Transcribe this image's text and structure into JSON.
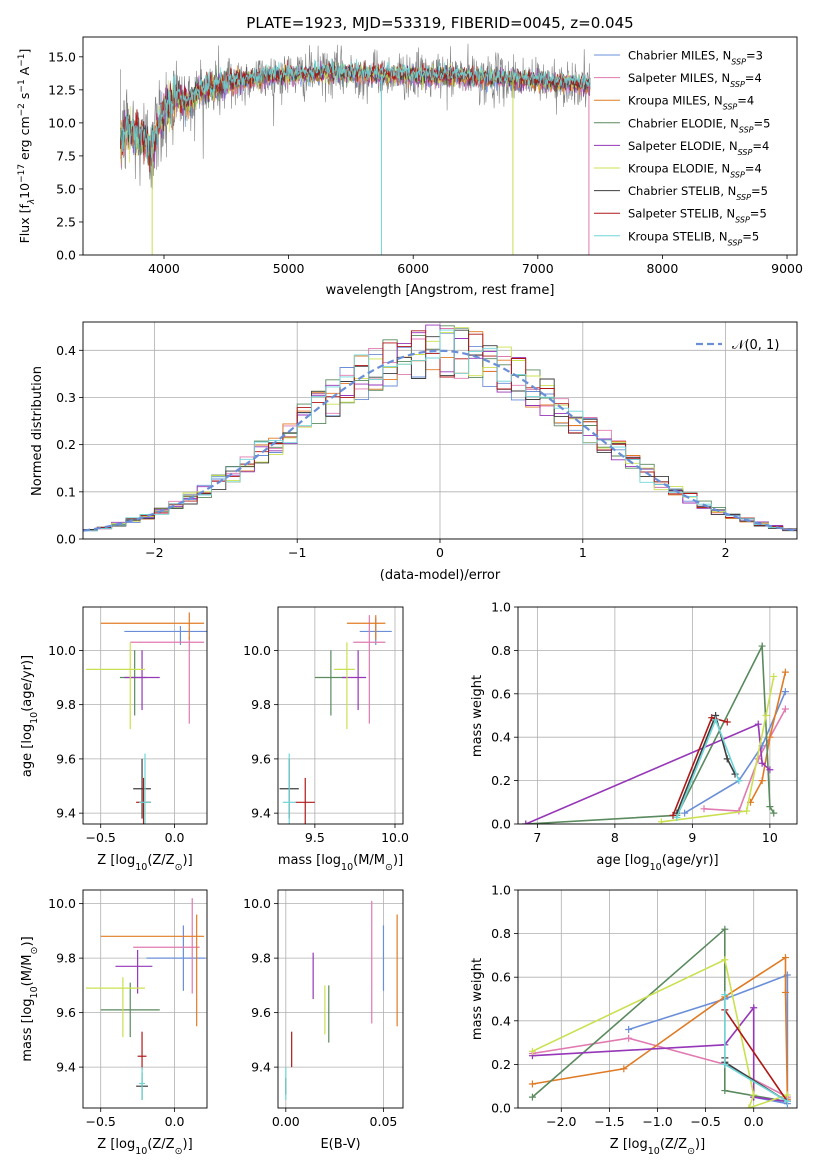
{
  "chart_data": [
    {
      "id": "spectrum",
      "type": "line",
      "title": "PLATE=1923, MJD=53319, FIBERID=0045, z=0.045",
      "xlabel": "wavelength [Angstrom, rest frame]",
      "ylabel": "Flux [f$_\\lambda$10$^{-17}$ erg cm$^{-2}$ s$^{-1}$ A$^{-1}$]",
      "ylabel_main": "Flux [f",
      "ylabel_sub": "λ",
      "ylabel_mid": "10",
      "ylabel_sup1": "−17",
      "ylabel_mid2": " erg cm",
      "ylabel_sup2": "−2",
      "ylabel_mid3": " s",
      "ylabel_sup3": "−1",
      "ylabel_mid4": " A",
      "ylabel_sup4": "−1",
      "ylabel_end": "]",
      "xlim": [
        3350,
        9080
      ],
      "ylim": [
        0,
        16.5
      ],
      "xticks": [
        4000,
        5000,
        6000,
        7000,
        8000,
        9000
      ],
      "yticks": [
        0.0,
        2.5,
        5.0,
        7.5,
        10.0,
        12.5,
        15.0
      ],
      "legend_position": "right",
      "data_profile": {
        "x": [
          3650,
          3700,
          3800,
          3900,
          4000,
          4100,
          4200,
          4300,
          4500,
          4800,
          5000,
          5300,
          5600,
          6000,
          6400,
          6800,
          7000,
          7300,
          7420
        ],
        "y": [
          8.5,
          9.5,
          9.0,
          8.0,
          11.0,
          12.0,
          11.5,
          12.5,
          13.0,
          13.5,
          13.6,
          13.8,
          13.7,
          13.6,
          13.5,
          13.3,
          13.2,
          13.0,
          12.8
        ]
      },
      "data_x_range": [
        3650,
        7420
      ],
      "series": [
        {
          "name": "Chabrier MILES",
          "nssp": "3",
          "color": "#6a8fd8"
        },
        {
          "name": "Salpeter MILES",
          "nssp": "4",
          "color": "#e07ab0"
        },
        {
          "name": "Kroupa MILES",
          "nssp": "4",
          "color": "#e07b25"
        },
        {
          "name": "Chabrier ELODIE",
          "nssp": "5",
          "color": "#5a8a5e"
        },
        {
          "name": "Salpeter ELODIE",
          "nssp": "4",
          "color": "#9636b8"
        },
        {
          "name": "Kroupa ELODIE",
          "nssp": "4",
          "color": "#cbe050"
        },
        {
          "name": "Chabrier STELIB",
          "nssp": "5",
          "color": "#3e3e3e"
        },
        {
          "name": "Salpeter STELIB",
          "nssp": "5",
          "color": "#b01818"
        },
        {
          "name": "Kroupa STELIB",
          "nssp": "5",
          "color": "#6ed6d8"
        }
      ],
      "observed_color": "#808080",
      "absorption_drops": [
        {
          "x": 3905,
          "color": "#cbe050"
        },
        {
          "x": 5745,
          "color": "#6ed6d8"
        },
        {
          "x": 6800,
          "color": "#cbe050"
        },
        {
          "x": 7410,
          "color": "#e07ab0"
        }
      ]
    },
    {
      "id": "residual_hist",
      "type": "histogram",
      "xlabel": "(data-model)/error",
      "ylabel": "Normed distribution",
      "xlim": [
        -2.5,
        2.5
      ],
      "ylim": [
        0,
        0.46
      ],
      "xticks": [
        -2,
        -1,
        0,
        1,
        2
      ],
      "yticks": [
        0.0,
        0.1,
        0.2,
        0.3,
        0.4
      ],
      "grid": true,
      "legend": "𝒩(0, 1)",
      "legend_position": "top-right",
      "normal_curve_color": "#6a8fd8",
      "bin_width": 0.1,
      "bin_start": -2.5,
      "series_colors": [
        "#6a8fd8",
        "#e07ab0",
        "#e07b25",
        "#5a8a5e",
        "#9636b8",
        "#cbe050",
        "#3e3e3e",
        "#b01818",
        "#6ed6d8"
      ]
    },
    {
      "id": "age_vs_Z",
      "type": "errorbar",
      "xlabel": "Z [log$_{10}$(Z/Z$_\\odot$)]",
      "ylabel": "age  [log$_{10}$(age/yr)]",
      "xlim": [
        -0.62,
        0.22
      ],
      "ylim": [
        9.36,
        10.16
      ],
      "xticks": [
        -0.5,
        0.0
      ],
      "yticks": [
        9.4,
        9.6,
        9.8,
        10.0
      ],
      "grid": true,
      "points": [
        {
          "x": 0.04,
          "y": 10.07,
          "xerr": [
            0.38,
            0.2
          ],
          "yerr": [
            0.05,
            0.02
          ],
          "color": "#6a8fd8"
        },
        {
          "x": 0.1,
          "y": 10.03,
          "xerr": [
            0.4,
            0.1
          ],
          "yerr": [
            0.3,
            0.02
          ],
          "color": "#e07ab0"
        },
        {
          "x": 0.1,
          "y": 10.1,
          "xerr": [
            0.6,
            0.1
          ],
          "yerr": [
            0.06,
            0.04
          ],
          "color": "#e07b25"
        },
        {
          "x": -0.27,
          "y": 9.9,
          "xerr": [
            0.1,
            0.08
          ],
          "yerr": [
            0.14,
            0.1
          ],
          "color": "#5a8a5e"
        },
        {
          "x": -0.22,
          "y": 9.9,
          "xerr": [
            0.12,
            0.12
          ],
          "yerr": [
            0.12,
            0.1
          ],
          "color": "#9636b8"
        },
        {
          "x": -0.3,
          "y": 9.93,
          "xerr": [
            0.3,
            0.1
          ],
          "yerr": [
            0.22,
            0.1
          ],
          "color": "#cbe050"
        },
        {
          "x": -0.22,
          "y": 9.49,
          "xerr": [
            0.06,
            0.06
          ],
          "yerr": [
            0.11,
            0.11
          ],
          "color": "#3e3e3e"
        },
        {
          "x": -0.21,
          "y": 9.44,
          "xerr": [
            0.05,
            0.05
          ],
          "yerr": [
            0.09,
            0.09
          ],
          "color": "#b01818"
        },
        {
          "x": -0.2,
          "y": 9.44,
          "xerr": [
            0.04,
            0.04
          ],
          "yerr": [
            0.18,
            0.18
          ],
          "color": "#6ed6d8"
        }
      ]
    },
    {
      "id": "age_vs_mass",
      "type": "errorbar",
      "xlabel": "mass [log$_{10}$(M/M$_\\odot$)]",
      "ylabel": "",
      "xlim": [
        9.27,
        10.05
      ],
      "ylim": [
        9.36,
        10.16
      ],
      "xticks": [
        9.5,
        10.0
      ],
      "yticks": [
        9.4,
        9.6,
        9.8,
        10.0
      ],
      "grid": true,
      "points": [
        {
          "x": 9.88,
          "y": 10.07,
          "xerr": [
            0.1,
            0.1
          ],
          "yerr": [
            0.05,
            0.05
          ],
          "color": "#6a8fd8"
        },
        {
          "x": 9.84,
          "y": 10.03,
          "xerr": [
            0.1,
            0.1
          ],
          "yerr": [
            0.3,
            0.1
          ],
          "color": "#e07ab0"
        },
        {
          "x": 9.88,
          "y": 10.1,
          "xerr": [
            0.18,
            0.06
          ],
          "yerr": [
            0.06,
            0.03
          ],
          "color": "#e07b25"
        },
        {
          "x": 9.6,
          "y": 9.9,
          "xerr": [
            0.1,
            0.1
          ],
          "yerr": [
            0.14,
            0.1
          ],
          "color": "#5a8a5e"
        },
        {
          "x": 9.77,
          "y": 9.9,
          "xerr": [
            0.1,
            0.05
          ],
          "yerr": [
            0.12,
            0.1
          ],
          "color": "#9636b8"
        },
        {
          "x": 9.7,
          "y": 9.93,
          "xerr": [
            0.08,
            0.05
          ],
          "yerr": [
            0.22,
            0.1
          ],
          "color": "#cbe050"
        },
        {
          "x": 9.34,
          "y": 9.49,
          "xerr": [
            0.06,
            0.06
          ],
          "yerr": [
            0.11,
            0.11
          ],
          "color": "#3e3e3e"
        },
        {
          "x": 9.44,
          "y": 9.44,
          "xerr": [
            0.06,
            0.06
          ],
          "yerr": [
            0.09,
            0.09
          ],
          "color": "#b01818"
        },
        {
          "x": 9.34,
          "y": 9.44,
          "xerr": [
            0.04,
            0.04
          ],
          "yerr": [
            0.18,
            0.18
          ],
          "color": "#6ed6d8"
        }
      ]
    },
    {
      "id": "weight_vs_age",
      "type": "line",
      "xlabel": "age  [log$_{10}$(age/yr)]",
      "ylabel": "mass weight",
      "xlim": [
        6.75,
        10.35
      ],
      "ylim": [
        0,
        1.0
      ],
      "xticks": [
        7,
        8,
        9,
        10
      ],
      "yticks": [
        0.0,
        0.2,
        0.4,
        0.6,
        0.8,
        1.0
      ],
      "grid": true,
      "series": [
        {
          "color": "#6a8fd8",
          "x": [
            8.9,
            9.6,
            9.9,
            10.2
          ],
          "y": [
            0.05,
            0.2,
            0.36,
            0.61
          ]
        },
        {
          "color": "#e07ab0",
          "x": [
            9.15,
            9.6,
            9.85,
            10.2
          ],
          "y": [
            0.07,
            0.06,
            0.3,
            0.53
          ]
        },
        {
          "color": "#e07b25",
          "x": [
            9.75,
            9.9,
            10.0,
            10.2
          ],
          "y": [
            0.1,
            0.2,
            0.4,
            0.7
          ]
        },
        {
          "color": "#5a8a5e",
          "x": [
            6.85,
            8.8,
            9.9,
            10.0,
            10.05
          ],
          "y": [
            0.0,
            0.04,
            0.82,
            0.08,
            0.05
          ]
        },
        {
          "color": "#9636b8",
          "x": [
            6.85,
            9.85,
            9.9,
            10.0
          ],
          "y": [
            0.0,
            0.46,
            0.28,
            0.25
          ]
        },
        {
          "color": "#cbe050",
          "x": [
            8.6,
            9.7,
            9.95,
            10.05
          ],
          "y": [
            0.01,
            0.06,
            0.5,
            0.68
          ]
        },
        {
          "color": "#3e3e3e",
          "x": [
            8.8,
            9.3,
            9.45,
            9.55
          ],
          "y": [
            0.05,
            0.5,
            0.3,
            0.23
          ]
        },
        {
          "color": "#b01818",
          "x": [
            8.75,
            9.25,
            9.45
          ],
          "y": [
            0.04,
            0.49,
            0.47
          ]
        },
        {
          "color": "#6ed6d8",
          "x": [
            8.8,
            9.3,
            9.6
          ],
          "y": [
            0.03,
            0.48,
            0.2
          ]
        }
      ]
    },
    {
      "id": "mass_vs_Z",
      "type": "errorbar",
      "xlabel": "Z [log$_{10}$(Z/Z$_\\odot$)]",
      "ylabel": "mass [log$_{10}$(M/M$_\\odot$)]",
      "xlim": [
        -0.62,
        0.22
      ],
      "ylim": [
        9.25,
        10.05
      ],
      "xticks": [
        -0.5,
        0.0
      ],
      "yticks": [
        9.4,
        9.6,
        9.8,
        10.0
      ],
      "grid": true,
      "points": [
        {
          "x": 0.06,
          "y": 9.8,
          "xerr": [
            0.25,
            0.15
          ],
          "yerr": [
            0.12,
            0.12
          ],
          "color": "#6a8fd8"
        },
        {
          "x": 0.12,
          "y": 9.84,
          "xerr": [
            0.4,
            0.05
          ],
          "yerr": [
            0.17,
            0.18
          ],
          "color": "#e07ab0"
        },
        {
          "x": 0.15,
          "y": 9.88,
          "xerr": [
            0.65,
            0.05
          ],
          "yerr": [
            0.33,
            0.08
          ],
          "color": "#e07b25"
        },
        {
          "x": -0.3,
          "y": 9.61,
          "xerr": [
            0.2,
            0.2
          ],
          "yerr": [
            0.1,
            0.1
          ],
          "color": "#5a8a5e"
        },
        {
          "x": -0.25,
          "y": 9.77,
          "xerr": [
            0.15,
            0.1
          ],
          "yerr": [
            0.1,
            0.06
          ],
          "color": "#9636b8"
        },
        {
          "x": -0.35,
          "y": 9.69,
          "xerr": [
            0.25,
            0.15
          ],
          "yerr": [
            0.18,
            0.04
          ],
          "color": "#cbe050"
        },
        {
          "x": -0.22,
          "y": 9.33,
          "xerr": [
            0.04,
            0.04
          ],
          "yerr": [
            0.05,
            0.05
          ],
          "color": "#3e3e3e"
        },
        {
          "x": -0.22,
          "y": 9.44,
          "xerr": [
            0.03,
            0.03
          ],
          "yerr": [
            0.05,
            0.09
          ],
          "color": "#b01818"
        },
        {
          "x": -0.22,
          "y": 9.34,
          "xerr": [
            0.02,
            0.02
          ],
          "yerr": [
            0.06,
            0.06
          ],
          "color": "#6ed6d8"
        }
      ]
    },
    {
      "id": "mass_vs_ebv",
      "type": "errorbar",
      "xlabel": "E(B-V)",
      "ylabel": "",
      "xlim": [
        -0.004,
        0.06
      ],
      "ylim": [
        9.25,
        10.05
      ],
      "xticks": [
        0.0,
        0.05
      ],
      "yticks": [
        9.4,
        9.6,
        9.8,
        10.0
      ],
      "grid": true,
      "points": [
        {
          "x": 0.05,
          "y": 9.8,
          "xerr": [
            0,
            0
          ],
          "yerr": [
            0.12,
            0.12
          ],
          "color": "#6a8fd8"
        },
        {
          "x": 0.044,
          "y": 9.84,
          "xerr": [
            0,
            0
          ],
          "yerr": [
            0.28,
            0.17
          ],
          "color": "#e07ab0"
        },
        {
          "x": 0.057,
          "y": 9.88,
          "xerr": [
            0,
            0
          ],
          "yerr": [
            0.33,
            0.08
          ],
          "color": "#e07b25"
        },
        {
          "x": 0.022,
          "y": 9.61,
          "xerr": [
            0,
            0
          ],
          "yerr": [
            0.12,
            0.09
          ],
          "color": "#5a8a5e"
        },
        {
          "x": 0.014,
          "y": 9.77,
          "xerr": [
            0,
            0
          ],
          "yerr": [
            0.12,
            0.05
          ],
          "color": "#9636b8"
        },
        {
          "x": 0.02,
          "y": 9.6,
          "xerr": [
            0,
            0
          ],
          "yerr": [
            0.08,
            0.1
          ],
          "color": "#cbe050"
        },
        {
          "x": 0.0,
          "y": 9.33,
          "xerr": [
            0,
            0
          ],
          "yerr": [
            0.03,
            0.03
          ],
          "color": "#3e3e3e"
        },
        {
          "x": 0.003,
          "y": 9.46,
          "xerr": [
            0,
            0
          ],
          "yerr": [
            0.06,
            0.07
          ],
          "color": "#b01818"
        },
        {
          "x": 0.0,
          "y": 9.34,
          "xerr": [
            0,
            0
          ],
          "yerr": [
            0.06,
            0.06
          ],
          "color": "#6ed6d8"
        }
      ]
    },
    {
      "id": "weight_vs_Z",
      "type": "line",
      "xlabel": "Z [log$_{10}$(Z/Z$_\\odot$)]",
      "ylabel": "mass weight",
      "xlim": [
        -2.45,
        0.45
      ],
      "ylim": [
        0,
        1.0
      ],
      "xticks": [
        -2.0,
        -1.5,
        -1.0,
        -0.5,
        0.0
      ],
      "yticks": [
        0.0,
        0.2,
        0.4,
        0.6,
        0.8,
        1.0
      ],
      "grid": true,
      "series": [
        {
          "color": "#6a8fd8",
          "x": [
            -1.3,
            -0.3,
            0.35,
            0.35,
            0.0,
            0.35
          ],
          "y": [
            0.36,
            0.5,
            0.61,
            0.02,
            0.05,
            0.03
          ]
        },
        {
          "color": "#e07ab0",
          "x": [
            -2.3,
            -1.3,
            -0.3,
            0.35
          ],
          "y": [
            0.25,
            0.32,
            0.2,
            0.05
          ]
        },
        {
          "color": "#e07b25",
          "x": [
            -2.3,
            -1.35,
            -0.3,
            0.33,
            0.33,
            0.35
          ],
          "y": [
            0.11,
            0.18,
            0.51,
            0.69,
            0.53,
            0.04
          ]
        },
        {
          "color": "#5a8a5e",
          "x": [
            -2.3,
            -0.3,
            -0.3,
            0.35
          ],
          "y": [
            0.05,
            0.82,
            0.08,
            0.03
          ]
        },
        {
          "color": "#9636b8",
          "x": [
            -2.3,
            -0.3,
            0.0,
            0.0,
            0.35
          ],
          "y": [
            0.24,
            0.29,
            0.46,
            0.05,
            0.03
          ]
        },
        {
          "color": "#cbe050",
          "x": [
            -2.3,
            -0.3,
            0.0,
            -0.05,
            0.35
          ],
          "y": [
            0.26,
            0.68,
            0.06,
            0.0,
            0.06
          ]
        },
        {
          "color": "#3e3e3e",
          "x": [
            -0.3,
            -0.3,
            0.35
          ],
          "y": [
            0.23,
            0.21,
            0.03
          ]
        },
        {
          "color": "#b01818",
          "x": [
            -0.3,
            0.35
          ],
          "y": [
            0.45,
            0.03
          ]
        },
        {
          "color": "#6ed6d8",
          "x": [
            -0.3,
            -0.3,
            0.35
          ],
          "y": [
            0.52,
            0.2,
            0.03
          ]
        }
      ]
    }
  ]
}
